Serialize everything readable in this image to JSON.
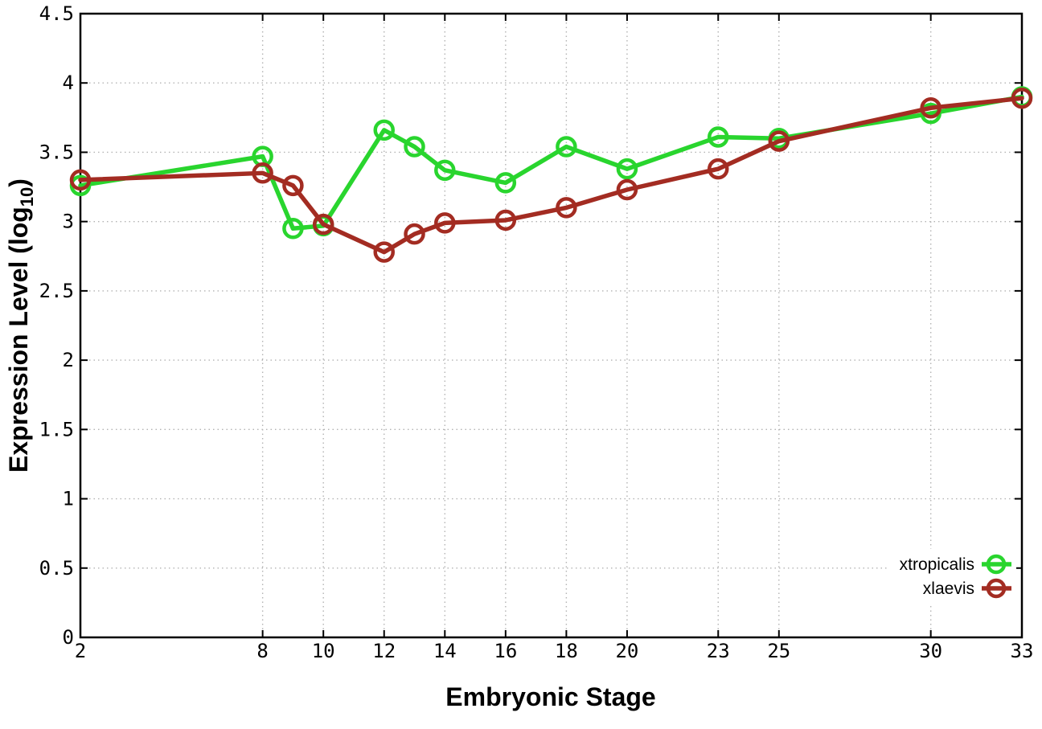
{
  "chart_data": {
    "type": "line",
    "title": "",
    "xlabel": "Embryonic Stage",
    "ylabel_parts": {
      "pre": "Expression Level (log",
      "sub": "10",
      "post": ")"
    },
    "xlim": [
      2,
      33
    ],
    "ylim": [
      0,
      4.5
    ],
    "xticks": [
      2,
      8,
      10,
      12,
      14,
      16,
      18,
      20,
      23,
      25,
      30,
      33
    ],
    "yticks": [
      0,
      0.5,
      1,
      1.5,
      2,
      2.5,
      3,
      3.5,
      4,
      4.5
    ],
    "grid": true,
    "legend_position": "inside-right-lower",
    "x": [
      2,
      8,
      9,
      10,
      12,
      13,
      14,
      16,
      18,
      20,
      23,
      25,
      30,
      33
    ],
    "series": [
      {
        "name": "xtropicalis",
        "color": "#29d52e",
        "values": [
          3.26,
          3.47,
          2.95,
          2.97,
          3.66,
          3.54,
          3.37,
          3.28,
          3.54,
          3.38,
          3.61,
          3.6,
          3.78,
          3.9
        ]
      },
      {
        "name": "xlaevis",
        "color": "#a32c22",
        "values": [
          3.3,
          3.35,
          3.26,
          2.98,
          2.78,
          2.91,
          2.99,
          3.01,
          3.1,
          3.23,
          3.38,
          3.58,
          3.82,
          3.89
        ]
      }
    ],
    "colors": {
      "axis": "#000000",
      "grid": "#b3b3b3",
      "background": "#ffffff"
    }
  }
}
